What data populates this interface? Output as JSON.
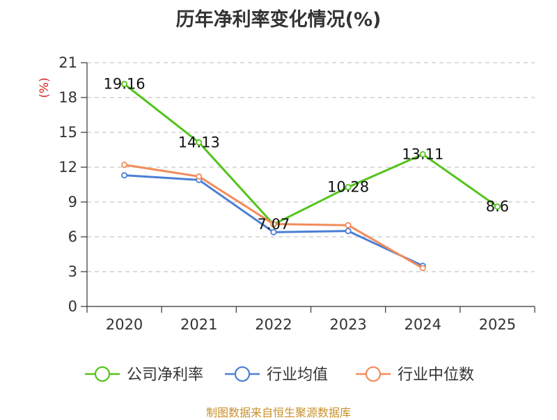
{
  "title": "历年净利率变化情况(%)",
  "source_note": "制图数据来自恒生聚源数据库",
  "chart_data": {
    "type": "line",
    "title": "历年净利率变化情况(%)",
    "ylabel": "(%)",
    "xlabel": "",
    "categories": [
      "2020",
      "2021",
      "2022",
      "2023",
      "2024",
      "2025"
    ],
    "ylim": [
      0,
      21
    ],
    "yticks": [
      0,
      3,
      6,
      9,
      12,
      15,
      18,
      21
    ],
    "grid": true,
    "legend_position": "bottom",
    "series": [
      {
        "name": "公司净利率",
        "color": "#52c41a",
        "show_labels": true,
        "values": [
          19.16,
          14.13,
          7.07,
          10.28,
          13.11,
          8.6
        ],
        "labels": [
          "19.16",
          "14.13",
          "7.07",
          "10.28",
          "13.11",
          "8.6"
        ]
      },
      {
        "name": "行业均值",
        "color": "#4a7fd6",
        "show_labels": false,
        "values": [
          11.3,
          10.9,
          6.4,
          6.5,
          3.5,
          null
        ]
      },
      {
        "name": "行业中位数",
        "color": "#f28c5a",
        "show_labels": false,
        "values": [
          12.2,
          11.2,
          7.1,
          7.0,
          3.3,
          null
        ]
      }
    ]
  }
}
